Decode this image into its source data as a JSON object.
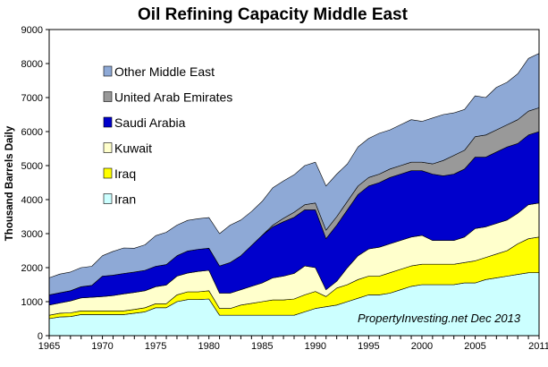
{
  "chart_data": {
    "type": "area",
    "stacked": true,
    "title": "Oil Refining Capacity Middle East",
    "ylabel": "Thousand Barrels Daily",
    "xlabel": "",
    "annotation": "PropertyInvesting.net  Dec 2013",
    "xlim": [
      1965,
      2011
    ],
    "ylim": [
      0,
      9000
    ],
    "xticks": [
      "1965",
      "1970",
      "1975",
      "1980",
      "1985",
      "1990",
      "1995",
      "2000",
      "2005",
      "2011"
    ],
    "yticks": [
      "0",
      "1000",
      "2000",
      "3000",
      "4000",
      "5000",
      "6000",
      "7000",
      "8000",
      "9000"
    ],
    "grid": false,
    "legend_position": "upper-left",
    "x": [
      1965,
      1966,
      1967,
      1968,
      1969,
      1970,
      1971,
      1972,
      1973,
      1974,
      1975,
      1976,
      1977,
      1978,
      1979,
      1980,
      1981,
      1982,
      1983,
      1984,
      1985,
      1986,
      1987,
      1988,
      1989,
      1990,
      1991,
      1992,
      1993,
      1994,
      1995,
      1996,
      1997,
      1998,
      1999,
      2000,
      2001,
      2002,
      2003,
      2004,
      2005,
      2006,
      2007,
      2008,
      2009,
      2010,
      2011
    ],
    "series": [
      {
        "name": "Iran",
        "color": "#ccffff",
        "values": [
          500,
          550,
          560,
          620,
          620,
          620,
          620,
          620,
          660,
          700,
          820,
          820,
          1000,
          1060,
          1060,
          1080,
          600,
          600,
          600,
          600,
          600,
          600,
          600,
          600,
          700,
          800,
          850,
          900,
          1000,
          1100,
          1200,
          1200,
          1250,
          1350,
          1450,
          1500,
          1500,
          1500,
          1500,
          1550,
          1550,
          1650,
          1700,
          1750,
          1800,
          1850,
          1850
        ]
      },
      {
        "name": "Iraq",
        "color": "#ffff00",
        "values": [
          100,
          110,
          110,
          110,
          110,
          110,
          110,
          110,
          110,
          120,
          120,
          120,
          200,
          230,
          230,
          240,
          200,
          200,
          300,
          350,
          400,
          450,
          450,
          480,
          500,
          500,
          300,
          500,
          500,
          550,
          550,
          550,
          600,
          600,
          600,
          600,
          600,
          600,
          600,
          600,
          650,
          650,
          700,
          750,
          900,
          1000,
          1050
        ]
      },
      {
        "name": "Kuwait",
        "color": "#ffffcc",
        "values": [
          300,
          300,
          350,
          380,
          400,
          420,
          450,
          500,
          500,
          500,
          500,
          550,
          550,
          550,
          600,
          600,
          450,
          450,
          450,
          500,
          550,
          650,
          700,
          750,
          850,
          700,
          200,
          200,
          500,
          700,
          800,
          850,
          850,
          850,
          850,
          850,
          700,
          700,
          700,
          750,
          950,
          900,
          900,
          900,
          900,
          1000,
          1000
        ]
      },
      {
        "name": "Saudi Arabia",
        "color": "#0000cc",
        "values": [
          300,
          300,
          300,
          330,
          350,
          600,
          600,
          600,
          600,
          600,
          600,
          600,
          600,
          650,
          650,
          650,
          800,
          900,
          1000,
          1200,
          1400,
          1500,
          1600,
          1650,
          1650,
          1700,
          1500,
          1650,
          1700,
          1800,
          1850,
          1900,
          1950,
          1950,
          1950,
          1900,
          1950,
          1900,
          1950,
          2000,
          2100,
          2050,
          2100,
          2150,
          2050,
          2050,
          2100
        ]
      },
      {
        "name": "United Arab Emirates",
        "color": "#999999",
        "values": [
          0,
          0,
          0,
          0,
          0,
          0,
          0,
          0,
          0,
          0,
          0,
          0,
          0,
          0,
          0,
          0,
          0,
          0,
          0,
          0,
          0,
          50,
          100,
          150,
          150,
          200,
          250,
          250,
          250,
          250,
          250,
          250,
          250,
          250,
          250,
          250,
          300,
          450,
          550,
          550,
          600,
          650,
          650,
          650,
          700,
          700,
          700
        ]
      },
      {
        "name": "Other Middle East",
        "color": "#8ea9d6",
        "values": [
          500,
          550,
          550,
          560,
          560,
          600,
          700,
          750,
          700,
          750,
          900,
          950,
          900,
          900,
          900,
          900,
          950,
          1100,
          1050,
          1000,
          1000,
          1100,
          1100,
          1100,
          1150,
          1200,
          1300,
          1250,
          1100,
          1150,
          1150,
          1200,
          1150,
          1200,
          1250,
          1200,
          1350,
          1350,
          1250,
          1200,
          1200,
          1100,
          1250,
          1250,
          1350,
          1550,
          1600
        ]
      }
    ]
  }
}
